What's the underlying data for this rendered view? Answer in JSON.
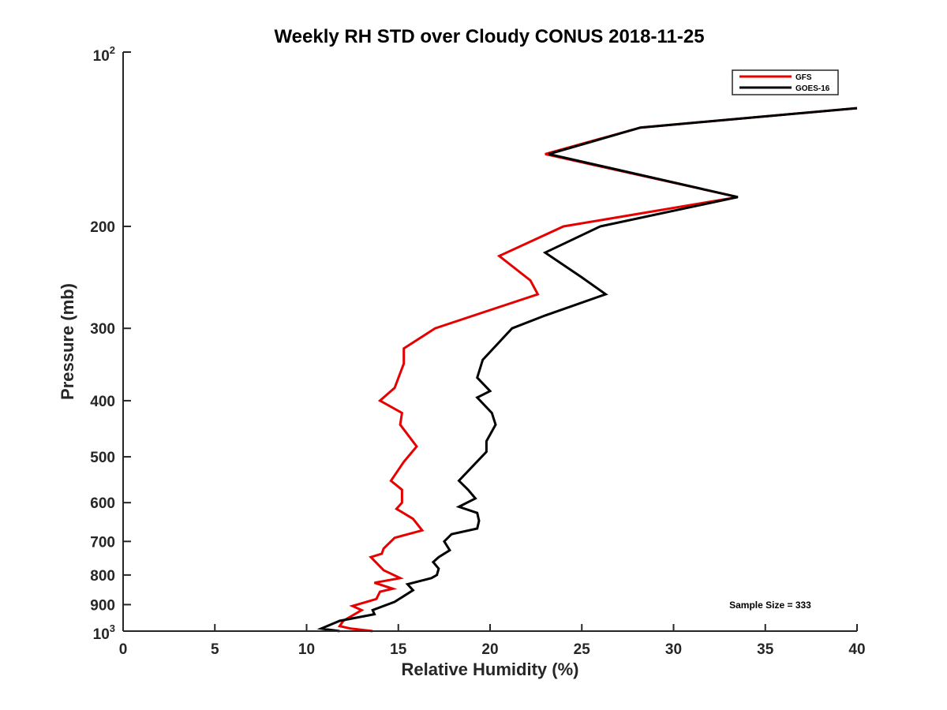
{
  "chart_data": {
    "type": "line",
    "title": "Weekly RH STD over Cloudy CONUS 2018-11-25",
    "xlabel": "Relative Humidity (%)",
    "ylabel": "Pressure (mb)",
    "xlim": [
      0,
      40
    ],
    "ylim": [
      100,
      1000
    ],
    "y_scale": "log",
    "y_reversed": true,
    "grid": false,
    "x_ticks": [
      0,
      5,
      10,
      15,
      20,
      25,
      30,
      35,
      40
    ],
    "x_tick_labels": [
      "0",
      "5",
      "10",
      "15",
      "20",
      "25",
      "30",
      "35",
      "40"
    ],
    "y_ticks": [
      200,
      300,
      400,
      500,
      600,
      700,
      800,
      900
    ],
    "y_tick_labels": [
      "200",
      "300",
      "400",
      "500",
      "600",
      "700",
      "800",
      "900"
    ],
    "y_top_label": {
      "base": "10",
      "exp": "2"
    },
    "y_bottom_label": {
      "base": "10",
      "exp": "3"
    },
    "legend_position": "top-right",
    "annotation": "Sample Size = 333",
    "series": [
      {
        "name": "GFS",
        "color": "#e60000",
        "points": [
          [
            40.0,
            125
          ],
          [
            28.2,
            135
          ],
          [
            23.0,
            150
          ],
          [
            33.5,
            178
          ],
          [
            24.0,
            200
          ],
          [
            20.5,
            225
          ],
          [
            22.2,
            248
          ],
          [
            22.6,
            262
          ],
          [
            17.0,
            300
          ],
          [
            15.3,
            325
          ],
          [
            15.3,
            345
          ],
          [
            14.8,
            380
          ],
          [
            14.0,
            400
          ],
          [
            15.2,
            420
          ],
          [
            15.1,
            440
          ],
          [
            16.0,
            480
          ],
          [
            15.3,
            510
          ],
          [
            14.6,
            550
          ],
          [
            15.2,
            570
          ],
          [
            15.2,
            600
          ],
          [
            14.9,
            615
          ],
          [
            15.8,
            640
          ],
          [
            16.3,
            670
          ],
          [
            14.8,
            690
          ],
          [
            14.2,
            720
          ],
          [
            14.1,
            735
          ],
          [
            13.5,
            745
          ],
          [
            14.2,
            785
          ],
          [
            15.1,
            810
          ],
          [
            13.7,
            825
          ],
          [
            14.7,
            845
          ],
          [
            14.0,
            855
          ],
          [
            13.8,
            880
          ],
          [
            12.5,
            905
          ],
          [
            13.0,
            920
          ],
          [
            12.0,
            960
          ],
          [
            11.8,
            980
          ],
          [
            12.4,
            990
          ],
          [
            13.6,
            1000
          ]
        ]
      },
      {
        "name": "GOES-16",
        "color": "#000000",
        "points": [
          [
            40.0,
            125
          ],
          [
            28.2,
            135
          ],
          [
            23.2,
            150
          ],
          [
            33.5,
            178
          ],
          [
            26.0,
            200
          ],
          [
            23.0,
            222
          ],
          [
            25.0,
            245
          ],
          [
            26.3,
            262
          ],
          [
            23.0,
            285
          ],
          [
            21.2,
            300
          ],
          [
            19.6,
            340
          ],
          [
            19.3,
            365
          ],
          [
            20.0,
            385
          ],
          [
            19.3,
            395
          ],
          [
            20.1,
            420
          ],
          [
            20.3,
            440
          ],
          [
            19.8,
            470
          ],
          [
            19.8,
            490
          ],
          [
            18.3,
            550
          ],
          [
            18.8,
            570
          ],
          [
            19.2,
            590
          ],
          [
            18.3,
            610
          ],
          [
            19.3,
            625
          ],
          [
            19.4,
            645
          ],
          [
            19.3,
            665
          ],
          [
            17.9,
            680
          ],
          [
            17.5,
            700
          ],
          [
            17.8,
            725
          ],
          [
            17.2,
            745
          ],
          [
            16.9,
            760
          ],
          [
            17.2,
            780
          ],
          [
            17.1,
            800
          ],
          [
            16.8,
            810
          ],
          [
            15.5,
            830
          ],
          [
            15.8,
            850
          ],
          [
            14.8,
            890
          ],
          [
            13.6,
            920
          ],
          [
            13.7,
            935
          ],
          [
            11.8,
            960
          ],
          [
            10.8,
            990
          ],
          [
            11.8,
            1000
          ]
        ]
      }
    ]
  }
}
